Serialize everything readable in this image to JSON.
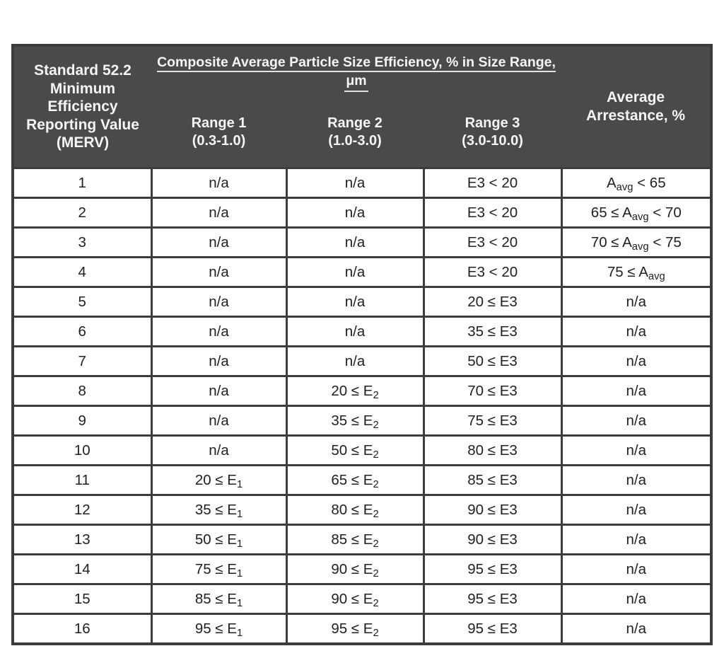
{
  "colors": {
    "header_bg": "#4a4a4a",
    "header_text": "#f5f5f5",
    "border": "#3c3c3c",
    "body_text": "#212121",
    "page_bg": "#ffffff"
  },
  "table": {
    "header": {
      "merv": "Standard 52.2\nMinimum\nEfficiency\nReporting Value\n(MERV)",
      "composite_line1": "Composite Average Particle Size Efficiency, % in Size Range,",
      "composite_line2": "μm",
      "range1": "Range 1\n(0.3-1.0)",
      "range2": "Range 2\n(1.0-3.0)",
      "range3": "Range 3\n(3.0-10.0)",
      "arrestance": "Average\nArrestance, %"
    },
    "row_keys": [
      "merv",
      "range1",
      "range2",
      "range3",
      "arrestance"
    ],
    "rows": [
      {
        "merv": "1",
        "range1": "n/a",
        "range2": "n/a",
        "range3": "E3 < 20",
        "arrestance": "A~avg~ < 65"
      },
      {
        "merv": "2",
        "range1": "n/a",
        "range2": "n/a",
        "range3": "E3 < 20",
        "arrestance": "65 ≤ A~avg~ < 70"
      },
      {
        "merv": "3",
        "range1": "n/a",
        "range2": "n/a",
        "range3": "E3 < 20",
        "arrestance": "70 ≤ A~avg~ < 75"
      },
      {
        "merv": "4",
        "range1": "n/a",
        "range2": "n/a",
        "range3": "E3 < 20",
        "arrestance": "75 ≤ A~avg~"
      },
      {
        "merv": "5",
        "range1": "n/a",
        "range2": "n/a",
        "range3": "20 ≤ E3",
        "arrestance": "n/a"
      },
      {
        "merv": "6",
        "range1": "n/a",
        "range2": "n/a",
        "range3": "35 ≤ E3",
        "arrestance": "n/a"
      },
      {
        "merv": "7",
        "range1": "n/a",
        "range2": "n/a",
        "range3": "50 ≤ E3",
        "arrestance": "n/a"
      },
      {
        "merv": "8",
        "range1": "n/a",
        "range2": "20 ≤ E~2~",
        "range3": "70 ≤ E3",
        "arrestance": "n/a"
      },
      {
        "merv": "9",
        "range1": "n/a",
        "range2": "35 ≤ E~2~",
        "range3": "75 ≤ E3",
        "arrestance": "n/a"
      },
      {
        "merv": "10",
        "range1": "n/a",
        "range2": "50 ≤ E~2~",
        "range3": "80 ≤ E3",
        "arrestance": "n/a"
      },
      {
        "merv": "11",
        "range1": "20 ≤ E~1~",
        "range2": "65 ≤ E~2~",
        "range3": "85 ≤ E3",
        "arrestance": "n/a"
      },
      {
        "merv": "12",
        "range1": "35 ≤ E~1~",
        "range2": "80 ≤ E~2~",
        "range3": "90 ≤ E3",
        "arrestance": "n/a"
      },
      {
        "merv": "13",
        "range1": "50 ≤ E~1~",
        "range2": "85 ≤ E~2~",
        "range3": "90 ≤ E3",
        "arrestance": "n/a"
      },
      {
        "merv": "14",
        "range1": "75 ≤ E~1~",
        "range2": "90 ≤ E~2~",
        "range3": "95 ≤ E3",
        "arrestance": "n/a"
      },
      {
        "merv": "15",
        "range1": "85 ≤ E~1~",
        "range2": "90 ≤ E~2~",
        "range3": "95 ≤ E3",
        "arrestance": "n/a"
      },
      {
        "merv": "16",
        "range1": "95 ≤ E~1~",
        "range2": "95 ≤ E~2~",
        "range3": "95 ≤ E3",
        "arrestance": "n/a"
      }
    ]
  }
}
